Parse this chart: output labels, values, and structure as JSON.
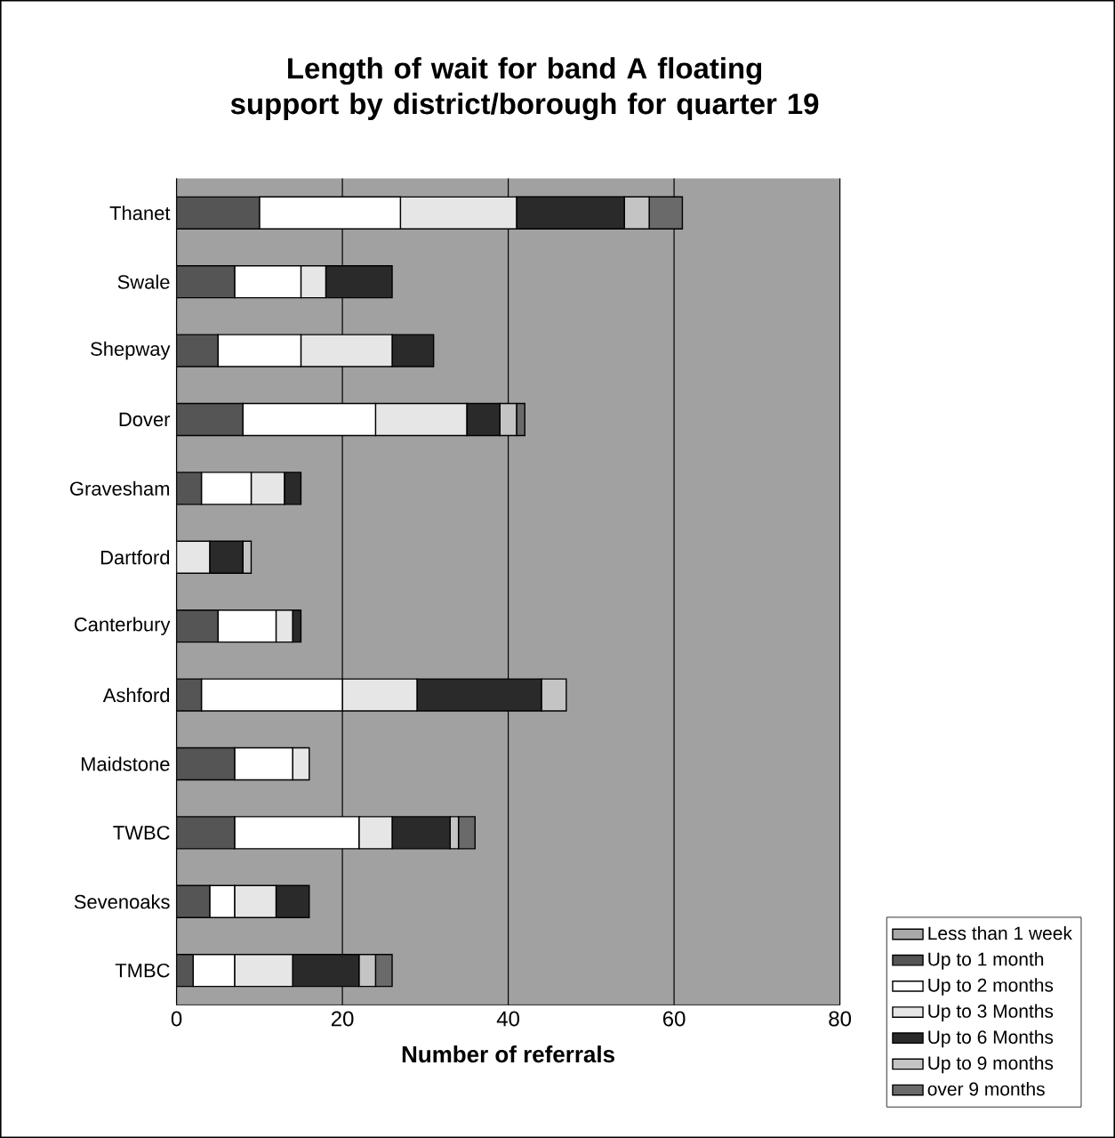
{
  "chart_data": {
    "type": "bar",
    "orientation": "horizontal",
    "stacked": true,
    "title": "Length of wait for band A floating support by district/borough for quarter 19",
    "xlabel": "Number of referrals",
    "categories": [
      "Thanet",
      "Swale",
      "Shepway",
      "Dover",
      "Gravesham",
      "Dartford",
      "Canterbury",
      "Ashford",
      "Maidstone",
      "TWBC",
      "Sevenoaks",
      "TMBC"
    ],
    "series": [
      {
        "name": "Less than 1 week",
        "color": "#a8a8a8",
        "values": [
          0,
          0,
          0,
          0,
          0,
          0,
          0,
          0,
          0,
          0,
          0,
          0
        ]
      },
      {
        "name": "Up to 1 month",
        "color": "#555555",
        "values": [
          10,
          7,
          5,
          8,
          3,
          0,
          5,
          3,
          7,
          7,
          4,
          2
        ]
      },
      {
        "name": "Up to 2 months",
        "color": "#ffffff",
        "values": [
          17,
          8,
          10,
          16,
          6,
          0,
          7,
          17,
          7,
          15,
          3,
          5
        ]
      },
      {
        "name": "Up to 3 Months",
        "color": "#e6e6e6",
        "values": [
          14,
          3,
          11,
          11,
          4,
          4,
          2,
          9,
          2,
          4,
          5,
          7
        ]
      },
      {
        "name": "Up to 6 Months",
        "color": "#2a2a2a",
        "values": [
          13,
          8,
          5,
          4,
          2,
          4,
          1,
          15,
          0,
          7,
          4,
          8
        ]
      },
      {
        "name": "Up to 9 months",
        "color": "#c4c4c4",
        "values": [
          3,
          0,
          0,
          2,
          0,
          1,
          0,
          3,
          0,
          1,
          0,
          2
        ]
      },
      {
        "name": "over 9 months",
        "color": "#6a6a6a",
        "values": [
          4,
          0,
          0,
          1,
          0,
          0,
          0,
          0,
          0,
          2,
          0,
          2
        ]
      }
    ],
    "xlim": [
      0,
      80
    ],
    "xticks": [
      0,
      20,
      40,
      60,
      80
    ],
    "grid": "x",
    "legend": "bottom right"
  }
}
